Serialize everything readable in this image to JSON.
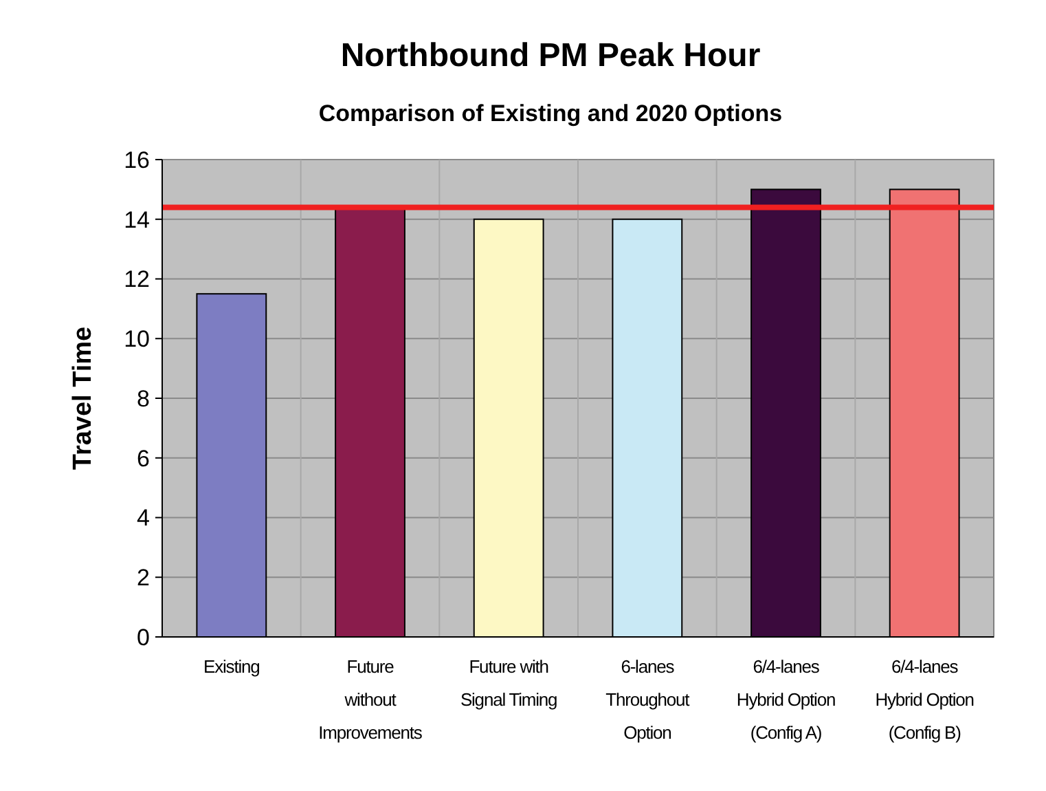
{
  "chart_data": {
    "type": "bar",
    "title": "Northbound PM  Peak Hour",
    "subtitle": "Comparison of Existing and 2020 Options",
    "ylabel": "Travel Time",
    "categories": [
      "Existing",
      "Future\nwithout\nImprovements",
      "Future with\nSignal Timing",
      "6-lanes\nThroughout\nOption",
      "6/4-lanes\nHybrid Option\n(Config A)",
      "6/4-lanes\nHybrid Option\n(Config B)"
    ],
    "values": [
      11.5,
      14.4,
      14,
      14,
      15,
      15
    ],
    "colors": [
      "#7d7dc2",
      "#8a1c4c",
      "#fdf8c4",
      "#c9e9f5",
      "#3b0a3d",
      "#f07272"
    ],
    "ylim": [
      0,
      16
    ],
    "yticks": [
      0,
      2,
      4,
      6,
      8,
      10,
      12,
      14,
      16
    ],
    "grid": true,
    "ref_lines": [
      {
        "axis": "y",
        "value": 14.4,
        "color": "#f02020"
      }
    ]
  }
}
